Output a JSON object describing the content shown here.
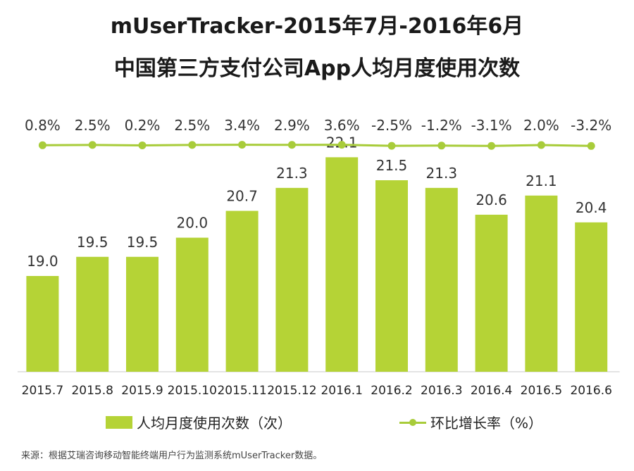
{
  "chart_data": {
    "type": "bar",
    "title_line1": "mUserTracker-2015年7月-2016年6月",
    "title_line2": "中国第三方支付公司App人均月度使用次数",
    "categories": [
      "2015.7",
      "2015.8",
      "2015.9",
      "2015.10",
      "2015.11",
      "2015.12",
      "2016.1",
      "2016.2",
      "2016.3",
      "2016.4",
      "2016.5",
      "2016.6"
    ],
    "series": [
      {
        "name": "人均月度使用次数（次）",
        "type": "bar",
        "values": [
          19.0,
          19.5,
          19.5,
          20.0,
          20.7,
          21.3,
          22.1,
          21.5,
          21.3,
          20.6,
          21.1,
          20.4
        ],
        "labels": [
          "19.0",
          "19.5",
          "19.5",
          "20.0",
          "20.7",
          "21.3",
          "22.1",
          "21.5",
          "21.3",
          "20.6",
          "21.1",
          "20.4"
        ]
      },
      {
        "name": "环比增长率（%）",
        "type": "line",
        "values": [
          0.8,
          2.5,
          0.2,
          2.5,
          3.4,
          2.9,
          3.6,
          -2.5,
          -1.2,
          -3.1,
          2.0,
          -3.2
        ],
        "labels": [
          "0.8%",
          "2.5%",
          "0.2%",
          "2.5%",
          "3.4%",
          "2.9%",
          "3.6%",
          "-2.5%",
          "-1.2%",
          "-3.1%",
          "2.0%",
          "-3.2%"
        ]
      }
    ],
    "legend": {
      "bar_label": "人均月度使用次数（次）",
      "line_label": "环比增长率（%）",
      "position": "bottom"
    },
    "colors": {
      "bar": "#b5d336",
      "line": "#a8cc3a"
    },
    "source": "来源：根据艾瑞咨询移动智能终端用户行为监测系统mUserTracker数据。"
  }
}
